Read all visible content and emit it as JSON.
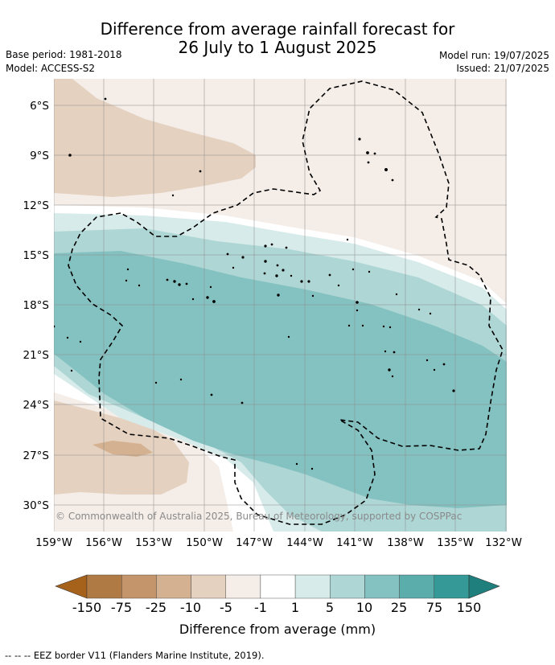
{
  "header": {
    "title_line1": "Difference from average rainfall forecast for",
    "title_line2": "26 July to 1 August 2025",
    "base_period": "Base period: 1981-2018",
    "model": "Model: ACCESS-S2",
    "model_run": "Model run: 19/07/2025",
    "issued": "Issued: 21/07/2025"
  },
  "map": {
    "lat_labels": [
      "6°S",
      "9°S",
      "12°S",
      "15°S",
      "18°S",
      "21°S",
      "24°S",
      "27°S",
      "30°S"
    ],
    "lon_labels": [
      "159°W",
      "156°W",
      "153°W",
      "150°W",
      "147°W",
      "144°W",
      "141°W",
      "138°W",
      "135°W",
      "132°W"
    ],
    "copyright": "© Commonwealth of Australia 2025, Bureau of Meteorology, supported by COSPPac"
  },
  "colorbar": {
    "tick_labels": [
      "-150",
      "-75",
      "-25",
      "-10",
      "-5",
      "-1",
      "1",
      "5",
      "10",
      "25",
      "75",
      "150"
    ],
    "colors": [
      "#a6611a",
      "#b07a45",
      "#c4956a",
      "#d4b190",
      "#e5d1c0",
      "#f4ede8",
      "#ffffff",
      "#d6ebea",
      "#aed6d5",
      "#84c2c1",
      "#5badac",
      "#359a97",
      "#1f7f7c"
    ],
    "label": "Difference from average (mm)"
  },
  "footer": {
    "eez_legend": "--  --  -- EEZ border V11 (Flanders Marine Institute, 2019)."
  }
}
